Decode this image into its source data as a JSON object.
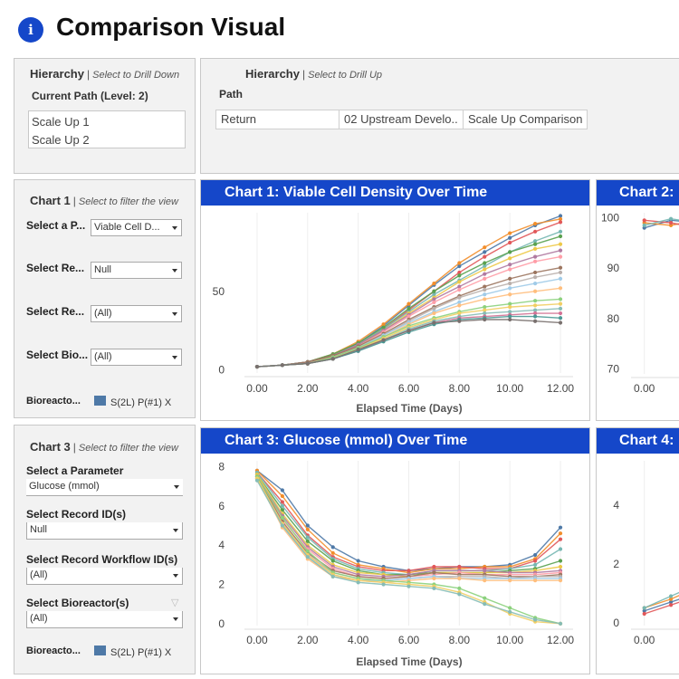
{
  "page": {
    "title": "Comparison Visual",
    "info_glyph": "i"
  },
  "hierarchy_down": {
    "title": "Hierarchy",
    "hint": "Select to Drill Down",
    "current_path_label": "Current Path (Level: 2)",
    "path_items": [
      "Scale Up 1",
      "Scale Up 2"
    ]
  },
  "hierarchy_up": {
    "title": "Hierarchy",
    "hint": "Select to Drill Up",
    "path_label": "Path",
    "crumbs": [
      "Return",
      "02 Upstream Develo..",
      "Scale Up Comparison"
    ]
  },
  "filters_chart1": {
    "title": "Chart 1",
    "hint": "Select to filter the view",
    "parameter_label": "Select a P...",
    "parameter_value": "Viable Cell D...",
    "record_id_label": "Select Re...",
    "record_id_value": "Null",
    "workflow_label": "Select Re...",
    "workflow_value": "(All)",
    "bioreactor_label": "Select Bio...",
    "bioreactor_value": "(All)",
    "legend_label": "Bioreacto...",
    "legend_item": "S(2L) P(#1) X"
  },
  "filters_chart3": {
    "title": "Chart 3",
    "hint": "Select to filter the view",
    "parameter_label": "Select a Parameter",
    "parameter_value": "Glucose (mmol)",
    "record_id_label": "Select Record ID(s)",
    "record_id_value": "Null",
    "workflow_label": "Select Record Workflow ID(s)",
    "workflow_value": "(All)",
    "bioreactor_label": "Select Bioreactor(s)",
    "bioreactor_value": "(All)",
    "legend_label": "Bioreacto...",
    "legend_item": "S(2L) P(#1) X"
  },
  "colors": {
    "header_blue": "#1547c9",
    "legend_swatch": "#4e79a7",
    "series_palette": [
      "#4e79a7",
      "#f28e2b",
      "#e15759",
      "#76b7b2",
      "#59a14f",
      "#edc948",
      "#b07aa1",
      "#ff9da7",
      "#9c755f",
      "#bab0ac",
      "#a0cbe8",
      "#ffbe7d",
      "#8cd17d",
      "#f1ce63",
      "#86bcb6",
      "#d37295",
      "#499894",
      "#79706e"
    ]
  },
  "chart_data": [
    {
      "id": "chart1",
      "type": "line",
      "title": "Chart 1:  Viable Cell Density Over Time",
      "xlabel": "Elapsed Time (Days)",
      "ylabel": "",
      "x_ticks": [
        "0.00",
        "2.00",
        "4.00",
        "6.00",
        "8.00",
        "10.00",
        "12.00"
      ],
      "y_ticks": [
        "0",
        "50"
      ],
      "xlim": [
        -0.5,
        12.5
      ],
      "ylim": [
        -2,
        100
      ],
      "x": [
        0,
        1,
        2,
        3,
        4,
        5,
        6,
        7,
        8,
        9,
        10,
        11,
        12
      ],
      "series": [
        {
          "values": [
            2,
            3,
            5,
            10,
            17,
            28,
            41,
            54,
            66,
            75,
            84,
            92,
            98
          ]
        },
        {
          "values": [
            2,
            3,
            5,
            10,
            18,
            29,
            42,
            55,
            68,
            78,
            87,
            93,
            96
          ]
        },
        {
          "values": [
            2,
            3,
            4,
            9,
            16,
            26,
            38,
            50,
            62,
            72,
            81,
            88,
            94
          ]
        },
        {
          "values": [
            2,
            3,
            5,
            9,
            16,
            26,
            37,
            48,
            57,
            66,
            75,
            82,
            88
          ]
        },
        {
          "values": [
            2,
            3,
            5,
            10,
            17,
            27,
            39,
            50,
            60,
            68,
            75,
            80,
            85
          ]
        },
        {
          "values": [
            2,
            3,
            4,
            9,
            15,
            25,
            36,
            46,
            56,
            64,
            71,
            77,
            80
          ]
        },
        {
          "values": [
            2,
            3,
            5,
            9,
            16,
            25,
            35,
            45,
            53,
            61,
            67,
            72,
            76
          ]
        },
        {
          "values": [
            2,
            3,
            4,
            8,
            15,
            24,
            34,
            43,
            51,
            58,
            64,
            69,
            72
          ]
        },
        {
          "values": [
            2,
            3,
            5,
            9,
            15,
            23,
            32,
            40,
            47,
            53,
            58,
            62,
            65
          ]
        },
        {
          "values": [
            2,
            3,
            4,
            8,
            14,
            22,
            31,
            39,
            46,
            51,
            55,
            59,
            62
          ]
        },
        {
          "values": [
            2,
            3,
            4,
            8,
            14,
            22,
            30,
            37,
            43,
            48,
            52,
            55,
            58
          ]
        },
        {
          "values": [
            2,
            3,
            4,
            8,
            13,
            21,
            29,
            36,
            41,
            45,
            48,
            50,
            52
          ]
        },
        {
          "values": [
            2,
            3,
            4,
            8,
            14,
            21,
            28,
            33,
            37,
            40,
            42,
            44,
            45
          ]
        },
        {
          "values": [
            2,
            3,
            4,
            7,
            13,
            20,
            27,
            32,
            36,
            38,
            40,
            41,
            42
          ]
        },
        {
          "values": [
            2,
            3,
            4,
            7,
            12,
            19,
            26,
            31,
            34,
            36,
            37,
            38,
            39
          ]
        },
        {
          "values": [
            2,
            3,
            4,
            7,
            12,
            19,
            25,
            30,
            33,
            34,
            35,
            36,
            36
          ]
        },
        {
          "values": [
            2,
            3,
            4,
            7,
            12,
            18,
            24,
            29,
            32,
            33,
            34,
            34,
            33
          ]
        },
        {
          "values": [
            2,
            3,
            4,
            7,
            13,
            19,
            25,
            30,
            31,
            32,
            32,
            31,
            30
          ]
        }
      ]
    },
    {
      "id": "chart2",
      "type": "line",
      "title": "Chart 2:",
      "xlabel": "",
      "ylabel": "",
      "x_ticks": [
        "0.00"
      ],
      "y_ticks": [
        "70",
        "80",
        "90",
        "100"
      ],
      "xlim": [
        -0.5,
        12.5
      ],
      "ylim": [
        69,
        101
      ],
      "x": [
        0,
        1,
        2
      ],
      "series": [
        {
          "values": [
            98,
            99.5,
            99
          ]
        },
        {
          "values": [
            99,
            98.5,
            99.5
          ]
        },
        {
          "values": [
            99.5,
            99,
            98
          ]
        },
        {
          "values": [
            98.5,
            99.8,
            99
          ]
        }
      ]
    },
    {
      "id": "chart3",
      "type": "line",
      "title": "Chart 3:  Glucose (mmol) Over Time",
      "xlabel": "Elapsed Time (Days)",
      "ylabel": "",
      "x_ticks": [
        "0.00",
        "2.00",
        "4.00",
        "6.00",
        "8.00",
        "10.00",
        "12.00"
      ],
      "y_ticks": [
        "0",
        "2",
        "4",
        "6",
        "8"
      ],
      "xlim": [
        -0.5,
        12.5
      ],
      "ylim": [
        -0.1,
        8.3
      ],
      "x": [
        0,
        1,
        2,
        3,
        4,
        5,
        6,
        7,
        8,
        9,
        10,
        11,
        12
      ],
      "series": [
        {
          "values": [
            7.8,
            6.8,
            5.0,
            3.9,
            3.2,
            2.9,
            2.7,
            2.8,
            2.9,
            2.9,
            3.0,
            3.5,
            4.9
          ]
        },
        {
          "values": [
            7.8,
            6.5,
            4.8,
            3.6,
            3.0,
            2.8,
            2.6,
            2.8,
            2.8,
            2.9,
            2.9,
            3.3,
            4.6
          ]
        },
        {
          "values": [
            7.7,
            6.2,
            4.5,
            3.4,
            2.9,
            2.7,
            2.7,
            2.9,
            2.9,
            2.8,
            2.8,
            3.2,
            4.3
          ]
        },
        {
          "values": [
            7.7,
            6.0,
            4.4,
            3.3,
            2.8,
            2.6,
            2.5,
            2.7,
            2.7,
            2.7,
            2.8,
            3.0,
            3.8
          ]
        },
        {
          "values": [
            7.6,
            5.8,
            4.2,
            3.2,
            2.7,
            2.5,
            2.5,
            2.6,
            2.6,
            2.6,
            2.7,
            2.8,
            3.2
          ]
        },
        {
          "values": [
            7.6,
            5.6,
            4.0,
            3.0,
            2.6,
            2.5,
            2.4,
            2.6,
            2.6,
            2.6,
            2.6,
            2.7,
            2.9
          ]
        },
        {
          "values": [
            7.5,
            5.5,
            3.9,
            2.9,
            2.5,
            2.4,
            2.5,
            2.7,
            2.7,
            2.7,
            2.6,
            2.6,
            2.7
          ]
        },
        {
          "values": [
            7.5,
            5.3,
            3.8,
            2.8,
            2.4,
            2.3,
            2.4,
            2.5,
            2.6,
            2.5,
            2.5,
            2.5,
            2.6
          ]
        },
        {
          "values": [
            7.5,
            5.2,
            3.6,
            2.7,
            2.4,
            2.3,
            2.4,
            2.6,
            2.5,
            2.5,
            2.4,
            2.4,
            2.5
          ]
        },
        {
          "values": [
            7.4,
            5.1,
            3.5,
            2.6,
            2.3,
            2.2,
            2.3,
            2.4,
            2.4,
            2.4,
            2.3,
            2.4,
            2.4
          ]
        },
        {
          "values": [
            7.4,
            5.0,
            3.4,
            2.5,
            2.2,
            2.2,
            2.3,
            2.4,
            2.3,
            2.3,
            2.3,
            2.3,
            2.3
          ]
        },
        {
          "values": [
            7.4,
            4.9,
            3.3,
            2.4,
            2.2,
            2.1,
            2.2,
            2.3,
            2.3,
            2.2,
            2.2,
            2.2,
            2.2
          ]
        },
        {
          "values": [
            7.5,
            5.4,
            3.7,
            2.6,
            2.3,
            2.2,
            2.1,
            2.0,
            1.8,
            1.3,
            0.8,
            0.3,
            0.0
          ]
        },
        {
          "values": [
            7.4,
            5.1,
            3.5,
            2.5,
            2.2,
            2.1,
            2.0,
            1.9,
            1.6,
            1.1,
            0.5,
            0.1,
            0.0
          ]
        },
        {
          "values": [
            7.3,
            5.0,
            3.4,
            2.4,
            2.1,
            2.0,
            1.9,
            1.8,
            1.5,
            1.0,
            0.6,
            0.2,
            0.0
          ]
        }
      ]
    },
    {
      "id": "chart4",
      "type": "line",
      "title": "Chart 4:",
      "xlabel": "",
      "ylabel": "",
      "x_ticks": [
        "0.00"
      ],
      "y_ticks": [
        "0",
        "2",
        "4"
      ],
      "xlim": [
        -0.5,
        12.5
      ],
      "ylim": [
        -0.1,
        5.5
      ],
      "x": [
        0,
        1,
        2
      ],
      "series": [
        {
          "values": [
            0.4,
            0.7,
            1.0
          ]
        },
        {
          "values": [
            0.5,
            0.8,
            1.2
          ]
        },
        {
          "values": [
            0.3,
            0.6,
            0.9
          ]
        },
        {
          "values": [
            0.5,
            0.9,
            1.3
          ]
        }
      ]
    }
  ]
}
